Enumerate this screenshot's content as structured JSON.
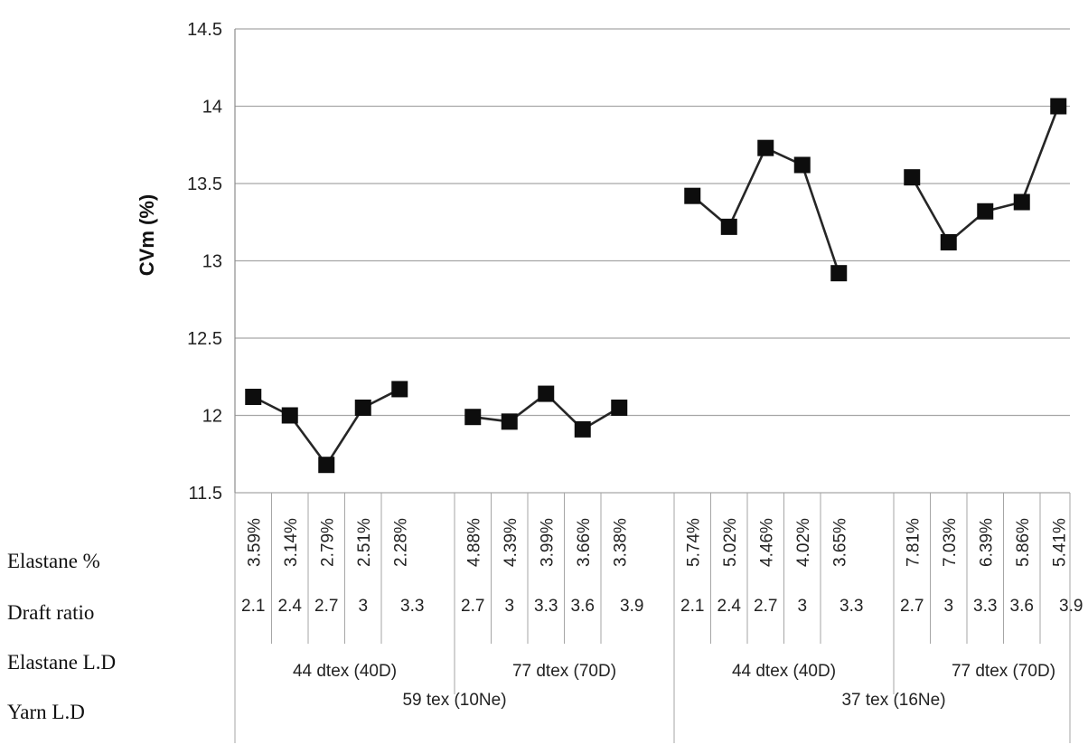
{
  "chart_data": {
    "type": "line",
    "ylabel": "CVm (%)",
    "ylim": [
      11.5,
      14.5
    ],
    "yticks": [
      "11.5",
      "12",
      "12.5",
      "13",
      "13.5",
      "14",
      "14.5"
    ],
    "grid": true,
    "marker": "square",
    "row_labels": {
      "elastane_pct": "Elastane %",
      "draft_ratio": "Draft ratio",
      "elastane_ld": "Elastane L.D",
      "yarn_ld": "Yarn L.D"
    },
    "yarn_groups": [
      {
        "label": "59 tex (10Ne)",
        "elastane_groups": [
          {
            "label": "44 dtex (40D)",
            "points": [
              {
                "elastane_pct": "3.59%",
                "draft_ratio": "2.1",
                "cvm": 12.12
              },
              {
                "elastane_pct": "3.14%",
                "draft_ratio": "2.4",
                "cvm": 12.0
              },
              {
                "elastane_pct": "2.79%",
                "draft_ratio": "2.7",
                "cvm": 11.68
              },
              {
                "elastane_pct": "2.51%",
                "draft_ratio": "3",
                "cvm": 12.05
              },
              {
                "elastane_pct": "2.28%",
                "draft_ratio": "3.3",
                "cvm": 12.17
              }
            ]
          },
          {
            "label": "77 dtex (70D)",
            "points": [
              {
                "elastane_pct": "4.88%",
                "draft_ratio": "2.7",
                "cvm": 11.99
              },
              {
                "elastane_pct": "4.39%",
                "draft_ratio": "3",
                "cvm": 11.96
              },
              {
                "elastane_pct": "3.99%",
                "draft_ratio": "3.3",
                "cvm": 12.14
              },
              {
                "elastane_pct": "3.66%",
                "draft_ratio": "3.6",
                "cvm": 11.91
              },
              {
                "elastane_pct": "3.38%",
                "draft_ratio": "3.9",
                "cvm": 12.05
              }
            ]
          }
        ]
      },
      {
        "label": "37 tex (16Ne)",
        "elastane_groups": [
          {
            "label": "44 dtex (40D)",
            "points": [
              {
                "elastane_pct": "5.74%",
                "draft_ratio": "2.1",
                "cvm": 13.42
              },
              {
                "elastane_pct": "5.02%",
                "draft_ratio": "2.4",
                "cvm": 13.22
              },
              {
                "elastane_pct": "4.46%",
                "draft_ratio": "2.7",
                "cvm": 13.73
              },
              {
                "elastane_pct": "4.02%",
                "draft_ratio": "3",
                "cvm": 13.62
              },
              {
                "elastane_pct": "3.65%",
                "draft_ratio": "3.3",
                "cvm": 12.92
              }
            ]
          },
          {
            "label": "77 dtex (70D)",
            "points": [
              {
                "elastane_pct": "7.81%",
                "draft_ratio": "2.7",
                "cvm": 13.54
              },
              {
                "elastane_pct": "7.03%",
                "draft_ratio": "3",
                "cvm": 13.12
              },
              {
                "elastane_pct": "6.39%",
                "draft_ratio": "3.3",
                "cvm": 13.32
              },
              {
                "elastane_pct": "5.86%",
                "draft_ratio": "3.6",
                "cvm": 13.38
              },
              {
                "elastane_pct": "5.41%",
                "draft_ratio": "3.9",
                "cvm": 14.0
              }
            ]
          }
        ]
      }
    ]
  }
}
